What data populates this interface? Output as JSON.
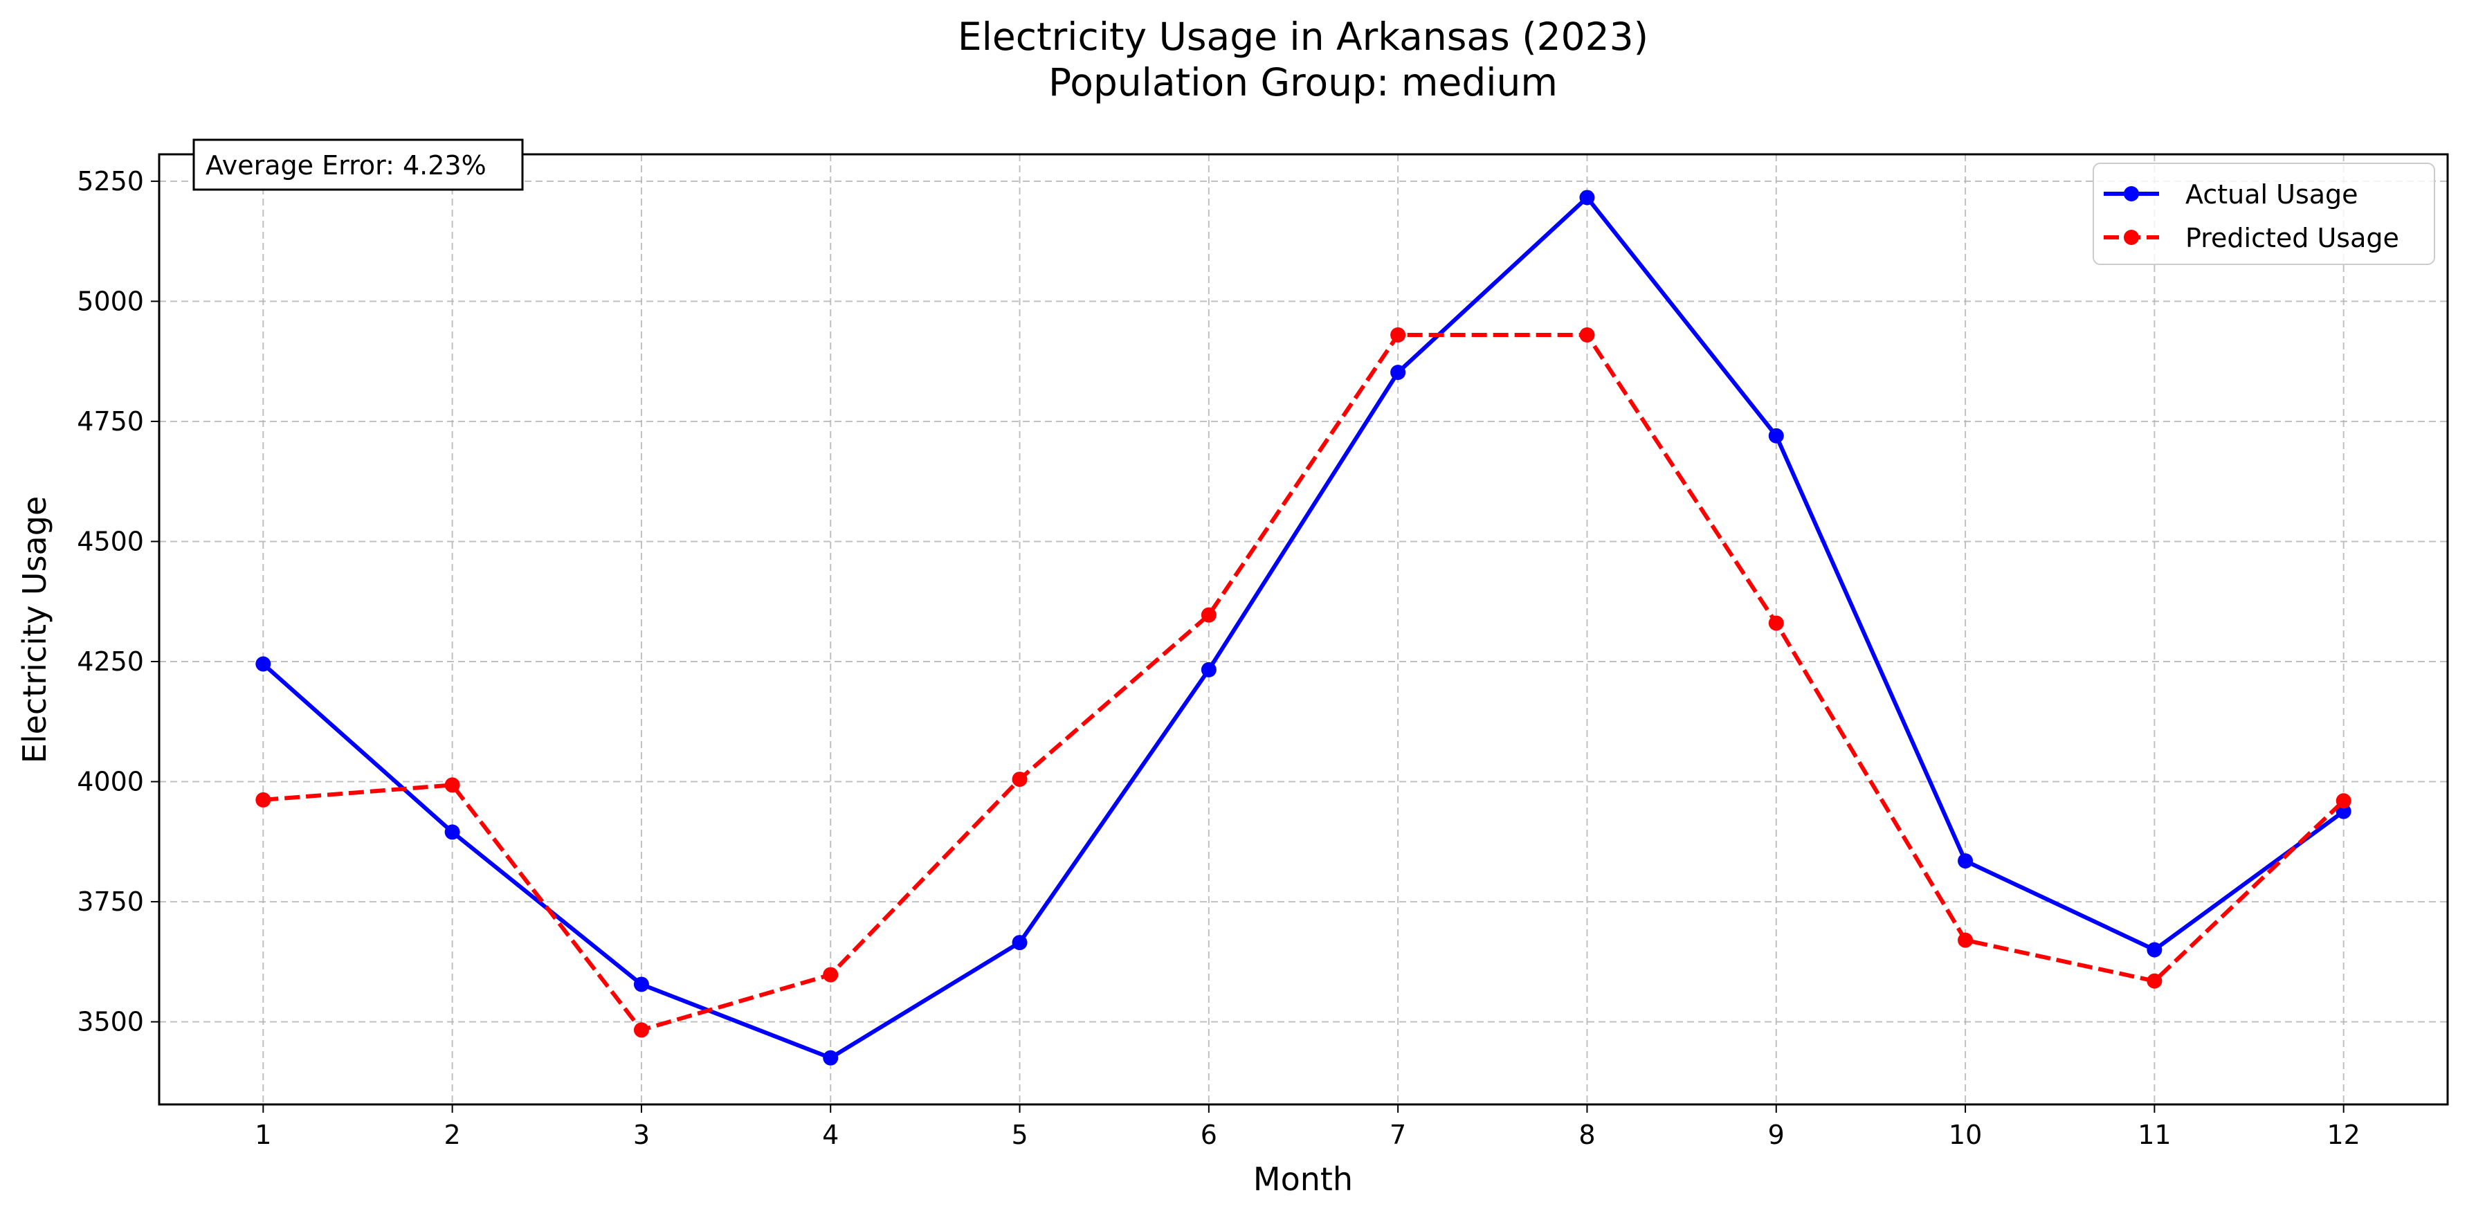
{
  "chart_data": {
    "type": "line",
    "title": "Electricity Usage in Arkansas (2023)",
    "subtitle": "Population Group: medium",
    "xlabel": "Month",
    "ylabel": "Electricity Usage",
    "x": [
      1,
      2,
      3,
      4,
      5,
      6,
      7,
      8,
      9,
      10,
      11,
      12
    ],
    "x_ticks": [
      "1",
      "2",
      "3",
      "4",
      "5",
      "6",
      "7",
      "8",
      "9",
      "10",
      "11",
      "12"
    ],
    "xlim": [
      0.45,
      12.55
    ],
    "ylim": [
      3328,
      5306
    ],
    "y_ticks": [
      3500,
      3750,
      4000,
      4250,
      4500,
      4750,
      5000,
      5250
    ],
    "grid": true,
    "legend_position": "top-right",
    "annotation": "Average Error: 4.23%",
    "series": [
      {
        "name": "Actual Usage",
        "color": "#0000ff",
        "line_style": "solid",
        "marker": "circle",
        "values": [
          4245,
          3895,
          3578,
          3425,
          3665,
          4233,
          4852,
          5216,
          4720,
          3835,
          3650,
          3938
        ]
      },
      {
        "name": "Predicted Usage",
        "color": "#ff0000",
        "line_style": "dashed",
        "marker": "circle",
        "values": [
          3962,
          3993,
          3483,
          3598,
          4005,
          4347,
          4930,
          4930,
          4330,
          3670,
          3585,
          3960
        ]
      }
    ]
  }
}
